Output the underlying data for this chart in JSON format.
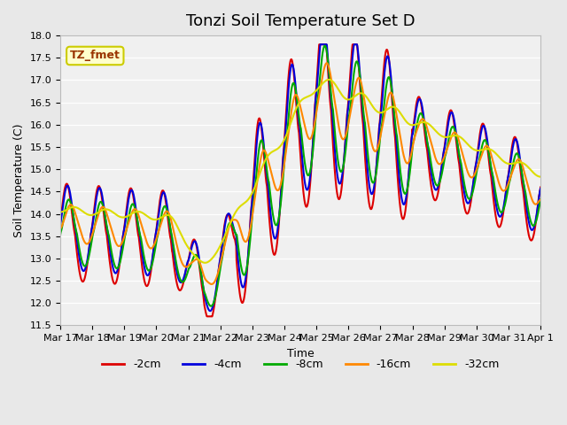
{
  "title": "Tonzi Soil Temperature Set D",
  "xlabel": "Time",
  "ylabel": "Soil Temperature (C)",
  "ylim": [
    11.5,
    18.0
  ],
  "yticks": [
    11.5,
    12.0,
    12.5,
    13.0,
    13.5,
    14.0,
    14.5,
    15.0,
    15.5,
    16.0,
    16.5,
    17.0,
    17.5,
    18.0
  ],
  "bg_color": "#e8e8e8",
  "plot_bg": "#f0f0f0",
  "legend_label": "TZ_fmet",
  "legend_bg": "#ffffcc",
  "legend_border": "#cccc00",
  "series_colors": [
    "#dd0000",
    "#0000dd",
    "#00aa00",
    "#ff8800",
    "#dddd00"
  ],
  "series_labels": [
    "-2cm",
    "-4cm",
    "-8cm",
    "-16cm",
    "-32cm"
  ],
  "line_width": 1.5,
  "x_tick_labels": [
    "Mar 17",
    "Mar 18",
    "Mar 19",
    "Mar 20",
    "Mar 21",
    "Mar 22",
    "Mar 23",
    "Mar 24",
    "Mar 25",
    "Mar 26",
    "Mar 27",
    "Mar 28",
    "Mar 29",
    "Mar 30",
    "Mar 31",
    "Apr 1"
  ],
  "title_fontsize": 13,
  "axis_fontsize": 9,
  "tick_fontsize": 8
}
